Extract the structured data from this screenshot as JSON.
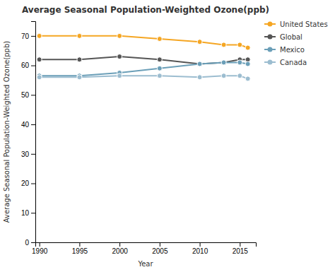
{
  "chart_data": {
    "type": "line",
    "title": "Average Seasonal Population-Weighted Ozone(ppb)",
    "x_label": "Year",
    "y_label": "Average Seasonal Population-Weighted Ozone(ppb)",
    "x": [
      1990,
      1995,
      2000,
      2005,
      2010,
      2013,
      2015,
      2016
    ],
    "series": [
      {
        "name": "United States",
        "color": "#f5a623",
        "values": [
          70.0,
          70.0,
          70.0,
          69.0,
          68.0,
          67.0,
          67.0,
          66.0
        ]
      },
      {
        "name": "Global",
        "color": "#555555",
        "values": [
          62.0,
          62.0,
          63.0,
          62.0,
          60.5,
          61.0,
          62.0,
          62.0
        ]
      },
      {
        "name": "Mexico",
        "color": "#6b9fb8",
        "values": [
          56.5,
          56.5,
          57.5,
          59.0,
          60.5,
          61.0,
          61.0,
          60.5
        ]
      },
      {
        "name": "Canada",
        "color": "#9cbdd0",
        "values": [
          56.0,
          56.0,
          56.5,
          56.5,
          56.0,
          56.5,
          56.5,
          55.5
        ]
      }
    ],
    "xlim": [
      1989.5,
      2017
    ],
    "ylim": [
      0,
      75
    ],
    "xticks": [
      1990,
      1995,
      2000,
      2005,
      2010,
      2015
    ],
    "yticks": [
      0,
      10,
      20,
      30,
      40,
      50,
      60,
      70
    ],
    "marker": "circle",
    "grid": false,
    "legend": "right"
  }
}
